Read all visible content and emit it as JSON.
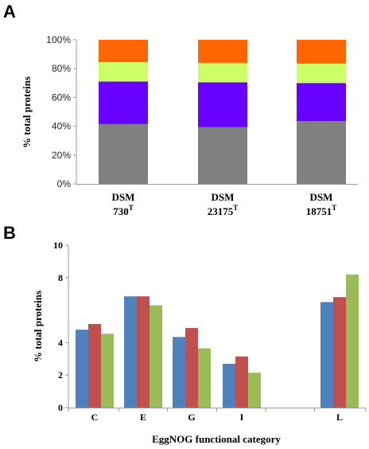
{
  "panels": {
    "a_label": "A",
    "b_label": "B"
  },
  "chart_data": [
    {
      "type": "bar",
      "stacked": true,
      "percent": true,
      "categories": [
        {
          "main": "DSM",
          "sub": "730",
          "sup": "T"
        },
        {
          "main": "DSM",
          "sub": "23175",
          "sup": "T"
        },
        {
          "main": "DSM",
          "sub": "18751",
          "sup": "T"
        }
      ],
      "series": [
        {
          "color": "#808080",
          "values": [
            41.5,
            39.5,
            43.5
          ]
        },
        {
          "color": "#6600ff",
          "values": [
            29.5,
            31,
            26.5
          ]
        },
        {
          "color": "#ccff66",
          "values": [
            13.5,
            13.5,
            13.5
          ]
        },
        {
          "color": "#ff6600",
          "values": [
            15.5,
            16,
            16.5
          ]
        }
      ],
      "ylabel": "% total proteins",
      "ylim": [
        0,
        100
      ],
      "yticks": [
        "0%",
        "20%",
        "40%",
        "60%",
        "80%",
        "100%"
      ],
      "grid": false,
      "legend": "none"
    },
    {
      "type": "bar",
      "categories": [
        "C",
        "E",
        "G",
        "I",
        "",
        "L"
      ],
      "series": [
        {
          "color": "#4f81bd",
          "values": [
            4.8,
            6.85,
            4.35,
            2.7,
            0,
            6.5
          ]
        },
        {
          "color": "#c0504d",
          "values": [
            5.15,
            6.85,
            4.9,
            3.15,
            0,
            6.8
          ]
        },
        {
          "color": "#9bbb59",
          "values": [
            4.55,
            6.3,
            3.65,
            2.15,
            0,
            8.2
          ]
        }
      ],
      "xlabel": "EggNOG functional category",
      "ylabel": "% total proteins",
      "ylim": [
        0,
        10
      ],
      "yticks": [
        {
          "value": 0,
          "label": "0"
        },
        {
          "value": 2,
          "label": "2"
        },
        {
          "value": 4,
          "label": "4"
        },
        {
          "value": 8,
          "label": "8"
        },
        {
          "value": 10,
          "label": "10"
        }
      ],
      "grid": false,
      "legend": "none"
    }
  ]
}
